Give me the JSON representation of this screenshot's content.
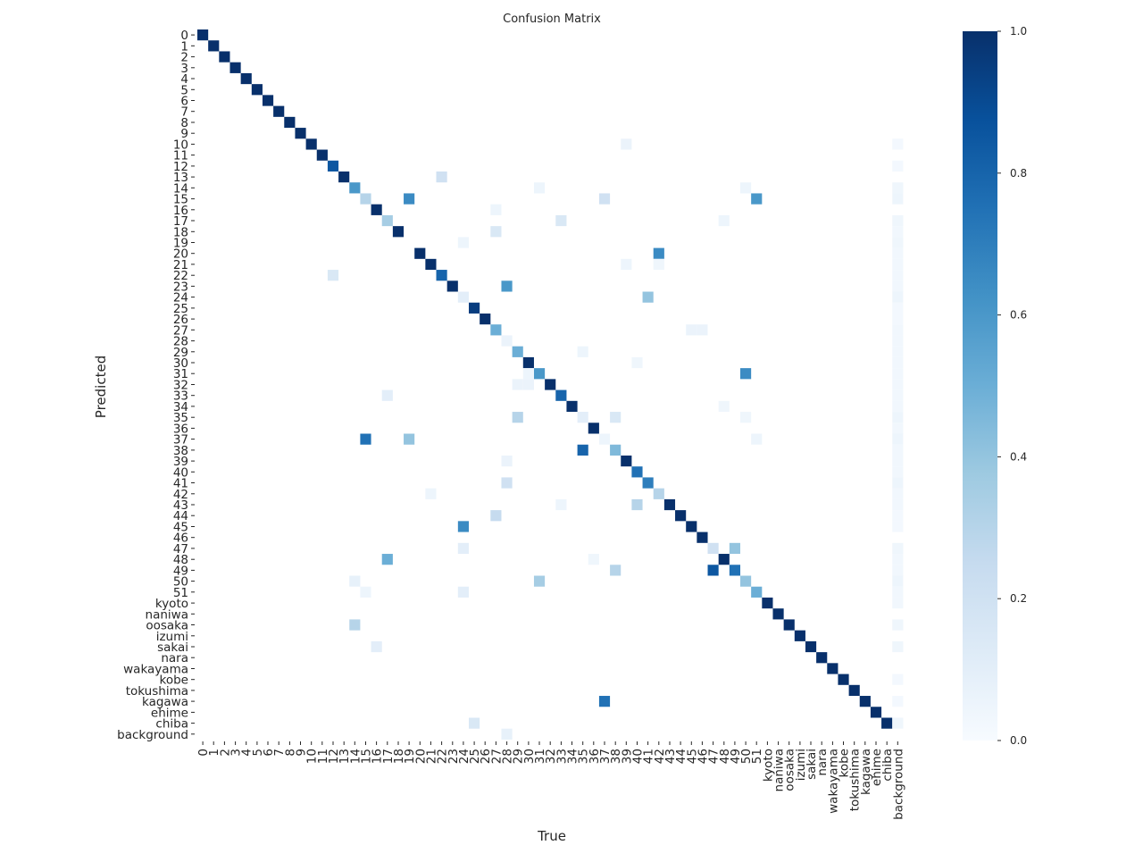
{
  "chart_data": {
    "type": "heatmap",
    "title": "Confusion Matrix",
    "xlabel": "True",
    "ylabel": "Predicted",
    "labels": [
      "0",
      "1",
      "2",
      "3",
      "4",
      "5",
      "6",
      "7",
      "8",
      "9",
      "10",
      "11",
      "12",
      "13",
      "14",
      "15",
      "16",
      "17",
      "18",
      "19",
      "20",
      "21",
      "22",
      "23",
      "24",
      "25",
      "26",
      "27",
      "28",
      "29",
      "30",
      "31",
      "32",
      "33",
      "34",
      "35",
      "36",
      "37",
      "38",
      "39",
      "40",
      "41",
      "42",
      "43",
      "44",
      "45",
      "46",
      "47",
      "48",
      "49",
      "50",
      "51",
      "kyoto",
      "naniwa",
      "oosaka",
      "izumi",
      "sakai",
      "nara",
      "wakayama",
      "kobe",
      "tokushima",
      "kagawa",
      "ehime",
      "chiba",
      "background"
    ],
    "diagonal": [
      1.0,
      1.0,
      1.0,
      1.0,
      1.0,
      1.0,
      1.0,
      1.0,
      1.0,
      1.0,
      1.0,
      1.0,
      0.85,
      1.0,
      0.6,
      0.3,
      1.0,
      0.35,
      1.0,
      0.0,
      1.0,
      1.0,
      0.8,
      1.0,
      0.1,
      0.95,
      1.0,
      0.5,
      0.06,
      0.5,
      1.0,
      0.6,
      1.0,
      0.8,
      1.0,
      0.1,
      1.0,
      0.05,
      0.45,
      1.0,
      0.75,
      0.7,
      0.3,
      1.0,
      1.0,
      1.0,
      1.0,
      0.2,
      1.0,
      0.75,
      0.4,
      0.5,
      1.0,
      1.0,
      1.0,
      1.0,
      1.0,
      1.0,
      1.0,
      1.0,
      1.0,
      1.0,
      1.0,
      1.0,
      0.0
    ],
    "off_diagonal": [
      {
        "pred": "10",
        "true": "39",
        "value": 0.06
      },
      {
        "pred": "10",
        "true": "background",
        "value": 0.02
      },
      {
        "pred": "12",
        "true": "background",
        "value": 0.02
      },
      {
        "pred": "13",
        "true": "22",
        "value": 0.2
      },
      {
        "pred": "14",
        "true": "31",
        "value": 0.05
      },
      {
        "pred": "14",
        "true": "50",
        "value": 0.05
      },
      {
        "pred": "14",
        "true": "background",
        "value": 0.04
      },
      {
        "pred": "15",
        "true": "19",
        "value": 0.65
      },
      {
        "pred": "15",
        "true": "37",
        "value": 0.2
      },
      {
        "pred": "15",
        "true": "51",
        "value": 0.6
      },
      {
        "pred": "15",
        "true": "background",
        "value": 0.05
      },
      {
        "pred": "16",
        "true": "27",
        "value": 0.05
      },
      {
        "pred": "17",
        "true": "33",
        "value": 0.15
      },
      {
        "pred": "17",
        "true": "48",
        "value": 0.05
      },
      {
        "pred": "17",
        "true": "background",
        "value": 0.04
      },
      {
        "pred": "18",
        "true": "27",
        "value": 0.15
      },
      {
        "pred": "18",
        "true": "background",
        "value": 0.03
      },
      {
        "pred": "19",
        "true": "24",
        "value": 0.05
      },
      {
        "pred": "19",
        "true": "background",
        "value": 0.04
      },
      {
        "pred": "20",
        "true": "42",
        "value": 0.65
      },
      {
        "pred": "20",
        "true": "background",
        "value": 0.03
      },
      {
        "pred": "21",
        "true": "39",
        "value": 0.05
      },
      {
        "pred": "21",
        "true": "42",
        "value": 0.04
      },
      {
        "pred": "21",
        "true": "background",
        "value": 0.03
      },
      {
        "pred": "22",
        "true": "12",
        "value": 0.15
      },
      {
        "pred": "22",
        "true": "background",
        "value": 0.03
      },
      {
        "pred": "23",
        "true": "28",
        "value": 0.6
      },
      {
        "pred": "23",
        "true": "background",
        "value": 0.03
      },
      {
        "pred": "24",
        "true": "41",
        "value": 0.4
      },
      {
        "pred": "24",
        "true": "background",
        "value": 0.05
      },
      {
        "pred": "25",
        "true": "background",
        "value": 0.02
      },
      {
        "pred": "26",
        "true": "background",
        "value": 0.02
      },
      {
        "pred": "27",
        "true": "45",
        "value": 0.06
      },
      {
        "pred": "27",
        "true": "46",
        "value": 0.06
      },
      {
        "pred": "27",
        "true": "background",
        "value": 0.03
      },
      {
        "pred": "28",
        "true": "background",
        "value": 0.03
      },
      {
        "pred": "29",
        "true": "35",
        "value": 0.05
      },
      {
        "pred": "29",
        "true": "background",
        "value": 0.03
      },
      {
        "pred": "30",
        "true": "40",
        "value": 0.04
      },
      {
        "pred": "30",
        "true": "background",
        "value": 0.03
      },
      {
        "pred": "31",
        "true": "30",
        "value": 0.05
      },
      {
        "pred": "31",
        "true": "50",
        "value": 0.65
      },
      {
        "pred": "31",
        "true": "background",
        "value": 0.03
      },
      {
        "pred": "32",
        "true": "29",
        "value": 0.06
      },
      {
        "pred": "32",
        "true": "30",
        "value": 0.06
      },
      {
        "pred": "32",
        "true": "background",
        "value": 0.03
      },
      {
        "pred": "33",
        "true": "17",
        "value": 0.1
      },
      {
        "pred": "33",
        "true": "background",
        "value": 0.03
      },
      {
        "pred": "34",
        "true": "48",
        "value": 0.04
      },
      {
        "pred": "34",
        "true": "background",
        "value": 0.03
      },
      {
        "pred": "35",
        "true": "29",
        "value": 0.3
      },
      {
        "pred": "35",
        "true": "38",
        "value": 0.15
      },
      {
        "pred": "35",
        "true": "50",
        "value": 0.04
      },
      {
        "pred": "35",
        "true": "background",
        "value": 0.05
      },
      {
        "pred": "36",
        "true": "background",
        "value": 0.03
      },
      {
        "pred": "37",
        "true": "15",
        "value": 0.75
      },
      {
        "pred": "37",
        "true": "19",
        "value": 0.4
      },
      {
        "pred": "37",
        "true": "51",
        "value": 0.05
      },
      {
        "pred": "37",
        "true": "background",
        "value": 0.05
      },
      {
        "pred": "38",
        "true": "35",
        "value": 0.8
      },
      {
        "pred": "38",
        "true": "background",
        "value": 0.03
      },
      {
        "pred": "39",
        "true": "28",
        "value": 0.06
      },
      {
        "pred": "39",
        "true": "background",
        "value": 0.03
      },
      {
        "pred": "40",
        "true": "background",
        "value": 0.03
      },
      {
        "pred": "41",
        "true": "28",
        "value": 0.2
      },
      {
        "pred": "41",
        "true": "background",
        "value": 0.05
      },
      {
        "pred": "42",
        "true": "21",
        "value": 0.05
      },
      {
        "pred": "42",
        "true": "background",
        "value": 0.03
      },
      {
        "pred": "43",
        "true": "33",
        "value": 0.05
      },
      {
        "pred": "43",
        "true": "40",
        "value": 0.3
      },
      {
        "pred": "43",
        "true": "background",
        "value": 0.03
      },
      {
        "pred": "44",
        "true": "27",
        "value": 0.25
      },
      {
        "pred": "44",
        "true": "background",
        "value": 0.02
      },
      {
        "pred": "45",
        "true": "24",
        "value": 0.65
      },
      {
        "pred": "45",
        "true": "background",
        "value": 0.02
      },
      {
        "pred": "47",
        "true": "24",
        "value": 0.1
      },
      {
        "pred": "47",
        "true": "49",
        "value": 0.4
      },
      {
        "pred": "47",
        "true": "background",
        "value": 0.04
      },
      {
        "pred": "48",
        "true": "17",
        "value": 0.5
      },
      {
        "pred": "48",
        "true": "36",
        "value": 0.04
      },
      {
        "pred": "48",
        "true": "background",
        "value": 0.03
      },
      {
        "pred": "49",
        "true": "38",
        "value": 0.3
      },
      {
        "pred": "49",
        "true": "47",
        "value": 0.85
      },
      {
        "pred": "49",
        "true": "49",
        "value": 0.75
      },
      {
        "pred": "49",
        "true": "background",
        "value": 0.03
      },
      {
        "pred": "50",
        "true": "14",
        "value": 0.08
      },
      {
        "pred": "50",
        "true": "31",
        "value": 0.35
      },
      {
        "pred": "50",
        "true": "background",
        "value": 0.05
      },
      {
        "pred": "51",
        "true": "15",
        "value": 0.05
      },
      {
        "pred": "51",
        "true": "24",
        "value": 0.1
      },
      {
        "pred": "51",
        "true": "background",
        "value": 0.03
      },
      {
        "pred": "kyoto",
        "true": "background",
        "value": 0.03
      },
      {
        "pred": "oosaka",
        "true": "14",
        "value": 0.3
      },
      {
        "pred": "oosaka",
        "true": "background",
        "value": 0.04
      },
      {
        "pred": "sakai",
        "true": "16",
        "value": 0.1
      },
      {
        "pred": "sakai",
        "true": "background",
        "value": 0.04
      },
      {
        "pred": "kobe",
        "true": "background",
        "value": 0.02
      },
      {
        "pred": "kagawa",
        "true": "37",
        "value": 0.75
      },
      {
        "pred": "kagawa",
        "true": "background",
        "value": 0.02
      },
      {
        "pred": "chiba",
        "true": "25",
        "value": 0.15
      },
      {
        "pred": "chiba",
        "true": "background",
        "value": 0.04
      },
      {
        "pred": "background",
        "true": "28",
        "value": 0.08
      }
    ],
    "colorbar": {
      "range": [
        0.0,
        1.0
      ],
      "ticks": [
        "0.0",
        "0.2",
        "0.4",
        "0.6",
        "0.8",
        "1.0"
      ]
    },
    "colormap": "Blues",
    "colors": {
      "low": "#f7fbff",
      "high": "#08306b"
    },
    "grid": false
  }
}
